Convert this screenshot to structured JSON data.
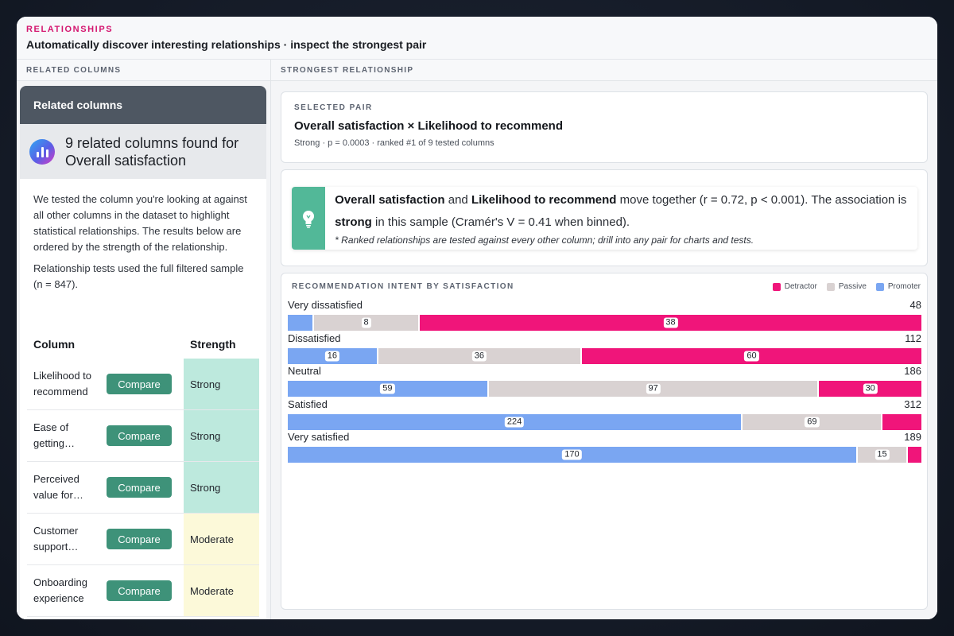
{
  "header": {
    "eyebrow": "RELATIONSHIPS",
    "title": "Automatically discover interesting relationships · inspect the strongest pair"
  },
  "left_panel": {
    "heading": "RELATED COLUMNS",
    "card_title": "Related columns",
    "found_text": "9 related columns found for Overall satisfaction",
    "description": "We tested the column you're looking at against all other columns in the dataset to highlight statistical relationships. The results below are ordered by the strength of the relationship.",
    "sample_note": "Relationship tests used the full filtered sample (n = 847).",
    "table": {
      "col_column": "Column",
      "col_strength": "Strength",
      "rows": [
        {
          "name": "Likelihood to recommend",
          "button": "Compare",
          "strength": "Strong"
        },
        {
          "name": "Ease of getting…",
          "button": "Compare",
          "strength": "Strong"
        },
        {
          "name": "Perceived value for…",
          "button": "Compare",
          "strength": "Strong"
        },
        {
          "name": "Customer support…",
          "button": "Compare",
          "strength": "Moderate"
        },
        {
          "name": "Onboarding experience",
          "button": "Compare",
          "strength": "Moderate"
        }
      ]
    }
  },
  "right_panel": {
    "heading": "STRONGEST RELATIONSHIP",
    "pair": {
      "eyebrow": "SELECTED PAIR",
      "title": "Overall satisfaction × Likelihood to recommend",
      "meta": "Strong · p = 0.0003 · ranked #1 of 9 tested columns"
    },
    "insight": {
      "col_a": "Overall satisfaction",
      "and": " and ",
      "col_b": "Likelihood to recommend",
      "text1": " move together (r = 0.72, p < 0.001). The association is ",
      "strength": "strong",
      "text2": " in this sample (Cramér's V = 0.41 when binned).",
      "note": "* Ranked relationships are tested against every other column; drill into any pair for charts and tests.",
      "icon": "lightbulb-icon"
    }
  },
  "chart_data": {
    "type": "bar",
    "orientation": "horizontal-stacked",
    "title": "RECOMMENDATION INTENT BY SATISFACTION",
    "legend_position": "top-right",
    "categories": [
      "Very dissatisfied",
      "Dissatisfied",
      "Neutral",
      "Satisfied",
      "Very satisfied"
    ],
    "totals": [
      48,
      112,
      186,
      312,
      189
    ],
    "series": [
      {
        "name": "Promoter",
        "color": "#7aa6f2",
        "values": [
          2,
          16,
          59,
          224,
          170
        ],
        "labels": [
          "",
          "16",
          "59",
          "224",
          "170"
        ]
      },
      {
        "name": "Passive",
        "color": "#d9d2d2",
        "values": [
          8,
          36,
          97,
          69,
          15
        ],
        "labels": [
          "8",
          "36",
          "97",
          "69",
          "15"
        ]
      },
      {
        "name": "Detractor",
        "color": "#f0157a",
        "values": [
          38,
          60,
          30,
          19,
          4
        ],
        "labels": [
          "38",
          "60",
          "30",
          "",
          ""
        ]
      }
    ],
    "legend_order": [
      "Detractor",
      "Passive",
      "Promoter"
    ]
  }
}
